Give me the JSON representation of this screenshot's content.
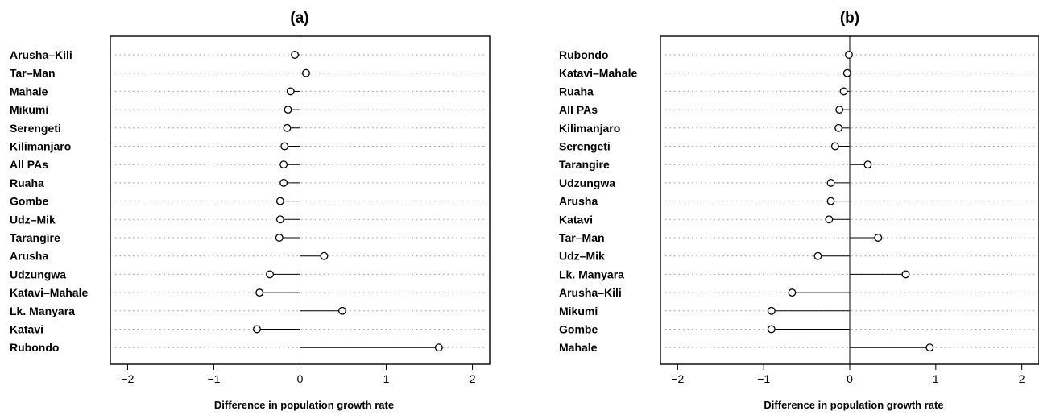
{
  "chart_data": [
    {
      "type": "dot",
      "title": "(a)",
      "xlabel": "Difference in population growth rate",
      "ylabel": "",
      "xlim": [
        -2.2,
        2.2
      ],
      "xticks": [
        "-2",
        "-1",
        "0",
        "1",
        "2"
      ],
      "xtick_values": [
        -2,
        -1,
        0,
        1,
        2
      ],
      "grid": "dotted horizontal",
      "categories": [
        "Arusha–Kili",
        "Tar–Man",
        "Mahale",
        "Mikumi",
        "Serengeti",
        "Kilimanjaro",
        "All PAs",
        "Ruaha",
        "Gombe",
        "Udz–Mik",
        "Tarangire",
        "Arusha",
        "Udzungwa",
        "Katavi–Mahale",
        "Lk. Manyara",
        "Katavi",
        "Rubondo"
      ],
      "values": [
        -0.06,
        0.07,
        -0.11,
        -0.14,
        -0.15,
        -0.18,
        -0.19,
        -0.19,
        -0.23,
        -0.23,
        -0.24,
        0.28,
        -0.35,
        -0.47,
        0.49,
        -0.5,
        1.61
      ]
    },
    {
      "type": "dot",
      "title": "(b)",
      "xlabel": "Difference in population growth rate",
      "ylabel": "",
      "xlim": [
        -2.2,
        2.2
      ],
      "xticks": [
        "-2",
        "-1",
        "0",
        "1",
        "2"
      ],
      "xtick_values": [
        -2,
        -1,
        0,
        1,
        2
      ],
      "grid": "dotted horizontal",
      "categories": [
        "Rubondo",
        "Katavi–Mahale",
        "Ruaha",
        "All PAs",
        "Kilimanjaro",
        "Serengeti",
        "Tarangire",
        "Udzungwa",
        "Arusha",
        "Katavi",
        "Tar–Man",
        "Udz–Mik",
        "Lk. Manyara",
        "Arusha–Kili",
        "Mikumi",
        "Gombe",
        "Mahale"
      ],
      "values": [
        -0.01,
        -0.03,
        -0.07,
        -0.12,
        -0.13,
        -0.17,
        0.21,
        -0.22,
        -0.22,
        -0.24,
        0.33,
        -0.37,
        0.65,
        -0.67,
        -0.91,
        -0.91,
        0.93
      ]
    }
  ]
}
